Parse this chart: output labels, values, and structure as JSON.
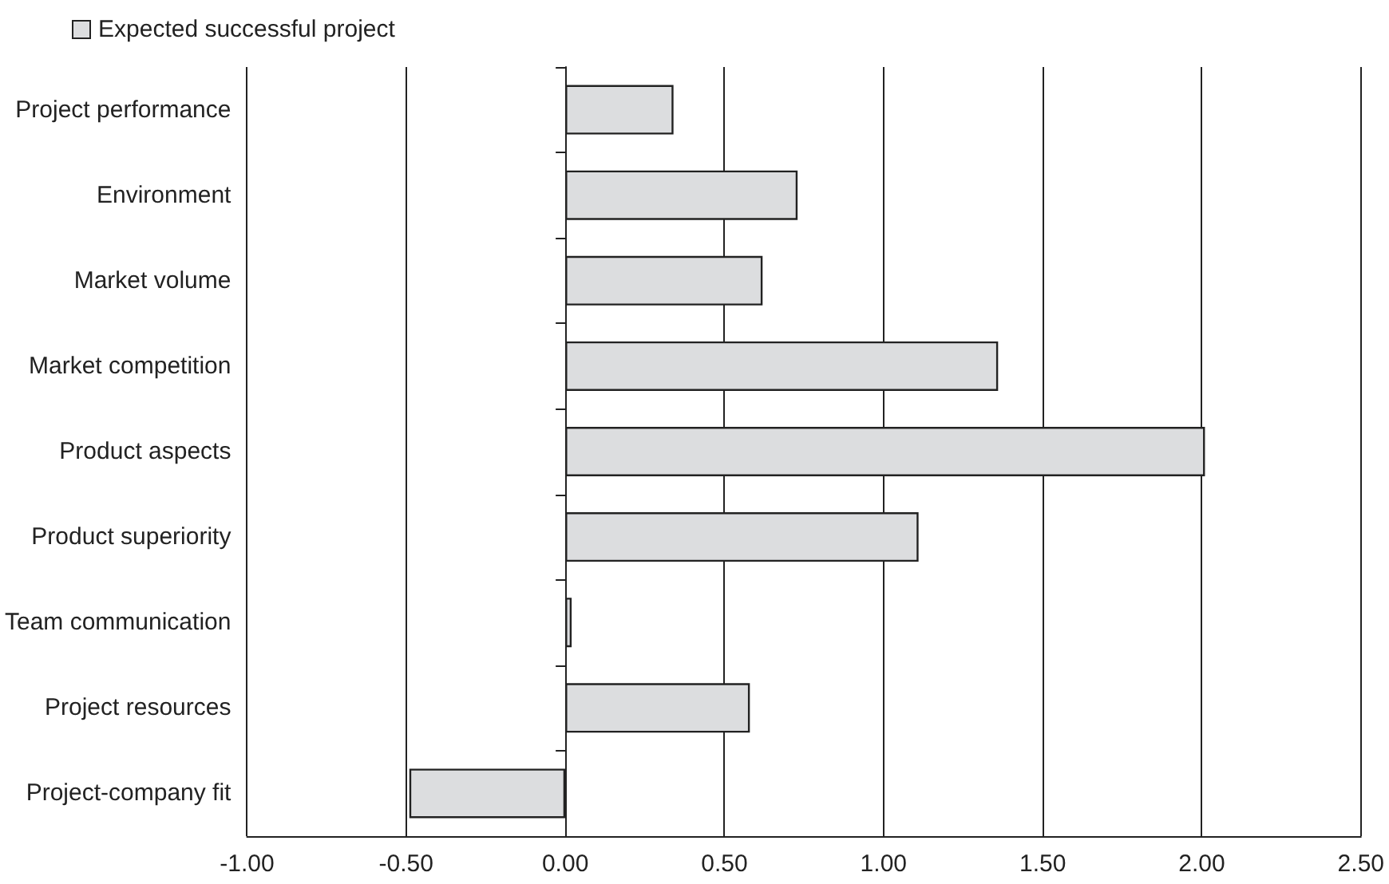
{
  "chart_data": {
    "type": "bar",
    "orientation": "horizontal",
    "categories": [
      "Project performance",
      "Environment",
      "Market volume",
      "Market competition",
      "Product aspects",
      "Product superiority",
      "Team communication",
      "Project resources",
      "Project-company fit"
    ],
    "series": [
      {
        "name": "Expected successful project",
        "color": "#dcdddf",
        "values": [
          0.34,
          0.73,
          0.62,
          1.36,
          2.01,
          1.11,
          0.02,
          0.58,
          -0.49
        ]
      }
    ],
    "xlim": [
      -1,
      2.5
    ],
    "xticks": [
      {
        "value": -1,
        "label": "-1.00"
      },
      {
        "value": -0.5,
        "label": "-0.50"
      },
      {
        "value": 0,
        "label": "0.00"
      },
      {
        "value": 0.5,
        "label": "0.50"
      },
      {
        "value": 1,
        "label": "1.00"
      },
      {
        "value": 1.5,
        "label": "1.50"
      },
      {
        "value": 2,
        "label": "2.00"
      },
      {
        "value": 2.5,
        "label": "2.50"
      }
    ],
    "grid": "x",
    "legend": "top left"
  }
}
